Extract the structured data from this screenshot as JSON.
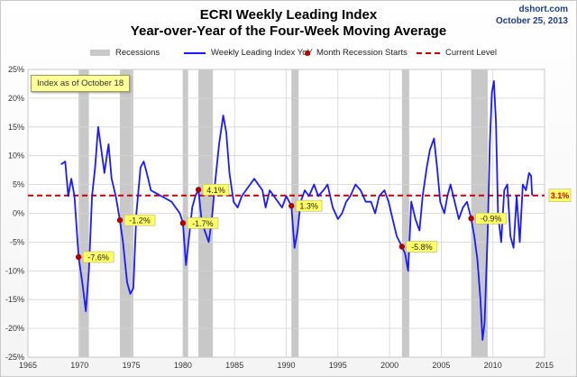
{
  "header": {
    "title": "ECRI Weekly Leading Index",
    "subtitle": "Year-over-Year of the Four-Week Moving Average",
    "source": "dshort.com",
    "date": "October 25, 2013"
  },
  "annotation_box": "Index as of October 18",
  "legend": {
    "recessions": "Recessions",
    "wli": "Weekly Leading Index YoY",
    "month_recession": "Month Recession Starts",
    "current": "Current Level"
  },
  "colors": {
    "series": "#1a1aff",
    "current_line": "#cc0000",
    "recession": "#c8c8c8",
    "marker": "#b00000",
    "label_bg": "#ffff66"
  },
  "chart_data": {
    "type": "line",
    "xlabel": "",
    "ylabel": "",
    "xlim": [
      1965,
      2015
    ],
    "ylim": [
      -25,
      25
    ],
    "x_ticks": [
      "1965",
      "1970",
      "1975",
      "1980",
      "1985",
      "1990",
      "1995",
      "2000",
      "2005",
      "2010",
      "2015"
    ],
    "y_ticks": [
      "25%",
      "20%",
      "15%",
      "10%",
      "5%",
      "0%",
      "-5%",
      "-10%",
      "-15%",
      "-20%",
      "-25%"
    ],
    "grid": true,
    "legend_position": "top",
    "recessions": [
      [
        1969.9,
        1970.9
      ],
      [
        1973.9,
        1975.2
      ],
      [
        1980.0,
        1980.5
      ],
      [
        1981.5,
        1982.9
      ],
      [
        1990.5,
        1991.2
      ],
      [
        2001.2,
        2001.9
      ],
      [
        2007.9,
        2009.5
      ]
    ],
    "current_level": {
      "value": 3.1,
      "label": "3.1%"
    },
    "recession_start_values": [
      {
        "x": 1969.9,
        "y": -7.6,
        "label": "-7.6%"
      },
      {
        "x": 1973.9,
        "y": -1.2,
        "label": "-1.2%"
      },
      {
        "x": 1980.0,
        "y": -1.7,
        "label": "-1.7%"
      },
      {
        "x": 1981.5,
        "y": 4.1,
        "label": "4.1%"
      },
      {
        "x": 1990.5,
        "y": 1.3,
        "label": "1.3%"
      },
      {
        "x": 2001.2,
        "y": -5.8,
        "label": "-5.8%"
      },
      {
        "x": 2007.9,
        "y": -0.9,
        "label": "-0.9%"
      }
    ],
    "series": [
      {
        "name": "Weekly Leading Index YoY",
        "points": [
          [
            1968.2,
            8.5
          ],
          [
            1968.6,
            9.0
          ],
          [
            1968.9,
            3.0
          ],
          [
            1969.2,
            6.0
          ],
          [
            1969.5,
            3.0
          ],
          [
            1969.9,
            -7.6
          ],
          [
            1970.3,
            -12.5
          ],
          [
            1970.6,
            -17.0
          ],
          [
            1970.9,
            -10.0
          ],
          [
            1971.2,
            3.0
          ],
          [
            1971.5,
            8.0
          ],
          [
            1971.8,
            15.0
          ],
          [
            1972.1,
            11.0
          ],
          [
            1972.4,
            7.0
          ],
          [
            1972.8,
            12.0
          ],
          [
            1973.1,
            6.0
          ],
          [
            1973.5,
            3.0
          ],
          [
            1973.9,
            -1.2
          ],
          [
            1974.2,
            -5.0
          ],
          [
            1974.6,
            -12.0
          ],
          [
            1974.9,
            -14.0
          ],
          [
            1975.2,
            -13.0
          ],
          [
            1975.5,
            0.0
          ],
          [
            1975.9,
            8.0
          ],
          [
            1976.2,
            9.0
          ],
          [
            1976.5,
            7.0
          ],
          [
            1976.9,
            4.0
          ],
          [
            1977.4,
            3.5
          ],
          [
            1977.9,
            3.0
          ],
          [
            1978.4,
            2.5
          ],
          [
            1978.9,
            2.0
          ],
          [
            1979.3,
            1.0
          ],
          [
            1979.7,
            0.0
          ],
          [
            1980.0,
            -1.7
          ],
          [
            1980.3,
            -9.0
          ],
          [
            1980.6,
            -4.0
          ],
          [
            1980.9,
            1.0
          ],
          [
            1981.2,
            3.0
          ],
          [
            1981.5,
            4.1
          ],
          [
            1981.8,
            -1.0
          ],
          [
            1982.1,
            -3.0
          ],
          [
            1982.5,
            -5.0
          ],
          [
            1982.8,
            -1.0
          ],
          [
            1983.1,
            5.0
          ],
          [
            1983.5,
            12.0
          ],
          [
            1983.9,
            17.0
          ],
          [
            1984.2,
            14.0
          ],
          [
            1984.5,
            7.0
          ],
          [
            1984.9,
            2.0
          ],
          [
            1985.3,
            1.0
          ],
          [
            1985.7,
            3.0
          ],
          [
            1986.1,
            4.0
          ],
          [
            1986.5,
            5.0
          ],
          [
            1986.9,
            6.0
          ],
          [
            1987.3,
            5.0
          ],
          [
            1987.7,
            4.0
          ],
          [
            1988.0,
            1.0
          ],
          [
            1988.4,
            4.0
          ],
          [
            1988.8,
            3.0
          ],
          [
            1989.2,
            2.0
          ],
          [
            1989.6,
            1.0
          ],
          [
            1990.0,
            3.0
          ],
          [
            1990.5,
            1.3
          ],
          [
            1990.8,
            -6.0
          ],
          [
            1991.1,
            -3.0
          ],
          [
            1991.4,
            2.0
          ],
          [
            1991.8,
            4.0
          ],
          [
            1992.2,
            3.0
          ],
          [
            1992.7,
            5.0
          ],
          [
            1993.1,
            3.0
          ],
          [
            1993.6,
            4.0
          ],
          [
            1994.0,
            5.0
          ],
          [
            1994.5,
            1.0
          ],
          [
            1995.0,
            -1.0
          ],
          [
            1995.4,
            0.0
          ],
          [
            1995.8,
            2.0
          ],
          [
            1996.2,
            3.0
          ],
          [
            1996.7,
            5.0
          ],
          [
            1997.2,
            4.0
          ],
          [
            1997.7,
            2.0
          ],
          [
            1998.2,
            2.0
          ],
          [
            1998.6,
            0.0
          ],
          [
            1999.0,
            3.0
          ],
          [
            1999.5,
            4.0
          ],
          [
            1999.9,
            2.0
          ],
          [
            2000.3,
            -1.0
          ],
          [
            2000.7,
            -4.0
          ],
          [
            2001.2,
            -5.8
          ],
          [
            2001.5,
            -7.0
          ],
          [
            2001.8,
            -10.0
          ],
          [
            2002.1,
            2.0
          ],
          [
            2002.5,
            -1.0
          ],
          [
            2002.9,
            -3.0
          ],
          [
            2003.2,
            3.0
          ],
          [
            2003.6,
            8.0
          ],
          [
            2003.9,
            11.0
          ],
          [
            2004.3,
            13.0
          ],
          [
            2004.6,
            8.0
          ],
          [
            2004.9,
            2.0
          ],
          [
            2005.3,
            0.0
          ],
          [
            2005.6,
            3.0
          ],
          [
            2005.9,
            5.0
          ],
          [
            2006.3,
            2.0
          ],
          [
            2006.7,
            -1.0
          ],
          [
            2007.1,
            1.0
          ],
          [
            2007.5,
            2.0
          ],
          [
            2007.9,
            -0.9
          ],
          [
            2008.2,
            -4.0
          ],
          [
            2008.5,
            -8.0
          ],
          [
            2008.8,
            -15.0
          ],
          [
            2009.0,
            -22.0
          ],
          [
            2009.2,
            -19.0
          ],
          [
            2009.5,
            -3.0
          ],
          [
            2009.7,
            12.0
          ],
          [
            2009.9,
            21.0
          ],
          [
            2010.1,
            23.0
          ],
          [
            2010.3,
            16.0
          ],
          [
            2010.5,
            0.0
          ],
          [
            2010.8,
            -5.0
          ],
          [
            2011.1,
            4.0
          ],
          [
            2011.4,
            5.0
          ],
          [
            2011.7,
            -4.0
          ],
          [
            2012.0,
            -6.0
          ],
          [
            2012.3,
            3.0
          ],
          [
            2012.6,
            -5.0
          ],
          [
            2012.9,
            5.0
          ],
          [
            2013.2,
            4.0
          ],
          [
            2013.5,
            7.0
          ],
          [
            2013.7,
            6.5
          ],
          [
            2013.8,
            3.1
          ]
        ]
      }
    ]
  }
}
